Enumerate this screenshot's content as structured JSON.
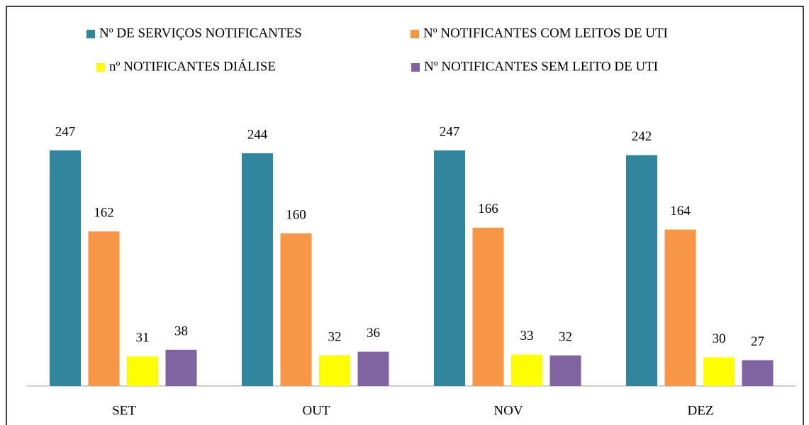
{
  "chart_data": {
    "type": "bar",
    "categories": [
      "SET",
      "OUT",
      "NOV",
      "DEZ"
    ],
    "series": [
      {
        "name": "Nº DE SERVIÇOS NOTIFICANTES",
        "color": "#31859c",
        "values": [
          247,
          244,
          247,
          242
        ]
      },
      {
        "name": "Nº NOTIFICANTES COM LEITOS DE UTI",
        "color": "#f79646",
        "values": [
          162,
          160,
          166,
          164
        ]
      },
      {
        "name": "nº NOTIFICANTES DIÁLISE",
        "color": "#ffff00",
        "values": [
          31,
          32,
          33,
          30
        ]
      },
      {
        "name": "Nº NOTIFICANTES SEM LEITO DE UTI",
        "color": "#8064a2",
        "values": [
          38,
          36,
          32,
          27
        ]
      }
    ]
  }
}
